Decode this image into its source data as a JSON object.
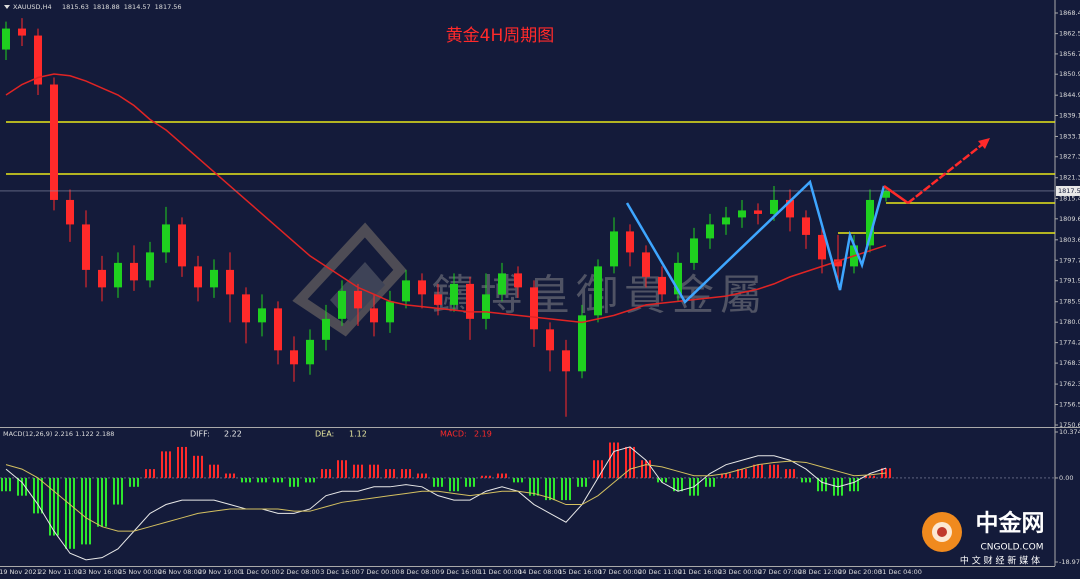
{
  "chart_data": [
    {
      "type": "candlestick",
      "title": "黄金4H周期图",
      "header": "XAUUSD,H4",
      "open": [
        1858,
        1864,
        1862,
        1848,
        1815,
        1808,
        1795,
        1790,
        1797,
        1792,
        1800,
        1808,
        1796,
        1790,
        1795,
        1788,
        1780,
        1784,
        1772,
        1768,
        1775,
        1781,
        1789,
        1784,
        1780,
        1786,
        1792,
        1788,
        1785,
        1791,
        1781,
        1788,
        1794,
        1790,
        1778,
        1772,
        1766,
        1782,
        1796,
        1806,
        1800,
        1793,
        1788,
        1797,
        1804,
        1808,
        1810,
        1812,
        1811,
        1815,
        1810,
        1805,
        1798,
        1796,
        1802,
        1815.63
      ],
      "high": [
        1866,
        1867,
        1864,
        1850,
        1818,
        1812,
        1799,
        1800,
        1802,
        1803,
        1813,
        1810,
        1799,
        1798,
        1800,
        1790,
        1788,
        1786,
        1776,
        1778,
        1785,
        1792,
        1791,
        1788,
        1789,
        1795,
        1794,
        1791,
        1794,
        1793,
        1794,
        1797,
        1796,
        1792,
        1780,
        1775,
        1785,
        1798,
        1810,
        1808,
        1802,
        1796,
        1800,
        1807,
        1811,
        1813,
        1815,
        1814,
        1819,
        1818,
        1812,
        1807,
        1805,
        1805,
        1818,
        1818.88
      ],
      "low": [
        1855,
        1859,
        1845,
        1812,
        1803,
        1790,
        1786,
        1787,
        1789,
        1790,
        1797,
        1793,
        1786,
        1787,
        1780,
        1774,
        1776,
        1768,
        1763,
        1765,
        1772,
        1779,
        1779,
        1776,
        1777,
        1784,
        1784,
        1782,
        1783,
        1775,
        1778,
        1786,
        1787,
        1773,
        1766,
        1753,
        1764,
        1780,
        1794,
        1796,
        1790,
        1786,
        1786,
        1795,
        1801,
        1805,
        1807,
        1808,
        1809,
        1806,
        1801,
        1794,
        1790,
        1794,
        1800,
        1814.57
      ],
      "close": [
        1864,
        1862,
        1848,
        1815,
        1808,
        1795,
        1790,
        1797,
        1792,
        1800,
        1808,
        1796,
        1790,
        1795,
        1788,
        1780,
        1784,
        1772,
        1768,
        1775,
        1781,
        1789,
        1784,
        1780,
        1786,
        1792,
        1788,
        1785,
        1791,
        1781,
        1788,
        1794,
        1790,
        1778,
        1772,
        1766,
        1782,
        1796,
        1806,
        1800,
        1793,
        1788,
        1797,
        1804,
        1808,
        1810,
        1812,
        1811,
        1815,
        1810,
        1805,
        1798,
        1796,
        1802,
        1815,
        1817.56
      ],
      "ma": [
        1845,
        1848,
        1850,
        1851,
        1850.5,
        1849,
        1847,
        1845,
        1842,
        1838,
        1835,
        1831,
        1827,
        1823,
        1819,
        1815,
        1811,
        1807,
        1803,
        1799,
        1796,
        1793,
        1790,
        1788,
        1786,
        1785,
        1784.5,
        1784,
        1783.5,
        1783,
        1783,
        1782.5,
        1782,
        1781.5,
        1781,
        1780.5,
        1780,
        1781,
        1782,
        1783.5,
        1785,
        1785.5,
        1786,
        1786.5,
        1787,
        1787.5,
        1788.5,
        1789.5,
        1791,
        1793,
        1794.5,
        1796,
        1797.5,
        1799,
        1800.5,
        1802
      ],
      "up_color": "#1fd01f",
      "down_color": "#ff2a2a",
      "ma_color": "#e02424",
      "levels": [
        1837.28,
        1822.42,
        1814.12,
        1805.55
      ],
      "level_starts": [
        0,
        0,
        55,
        52
      ],
      "level_color": "#e8e81a",
      "ylim": [
        1750.65,
        1868.45
      ],
      "yticks": [
        1868.45,
        1862.55,
        1856.75,
        1850.95,
        1844.95,
        1839.15,
        1833.15,
        1827.35,
        1821.35,
        1815.45,
        {
          "value": 1809.6,
          "label": "1809.60"
        },
        {
          "value": 1803.6,
          "label": "1803.60"
        },
        1797.75,
        {
          "value": 1791.9,
          "label": "1791.90"
        },
        {
          "value": 1785.9,
          "label": "1785.90"
        },
        1780.05,
        1774.2,
        1768.35,
        1762.35,
        {
          "value": 1756.5,
          "label": "1756.50"
        },
        1750.65
      ],
      "x_labels": [
        "19 Nov 2021",
        "22 Nov 11:00",
        "23 Nov 16:00",
        "25 Nov 00:00",
        "26 Nov 08:00",
        "29 Nov 19:00",
        "1 Dec 00:00",
        "2 Dec 08:00",
        "3 Dec 16:00",
        "7 Dec 00:00",
        "8 Dec 08:00",
        "9 Dec 16:00",
        "11 Dec 00:00",
        "14 Dec 08:00",
        "15 Dec 16:00",
        "17 Dec 00:00",
        "20 Dec 11:00",
        "21 Dec 16:00",
        "23 Dec 00:00",
        "27 Dec 07:00",
        "28 Dec 12:00",
        "29 Dec 20:00",
        "31 Dec 04:00"
      ]
    },
    {
      "type": "macd",
      "header": "MACD(12,26,9) 2.216 1.122 2.188",
      "series": [
        {
          "name": "MACD:",
          "color": "#ff2a2a",
          "down_color": "#2ee82e",
          "readout": 2.19,
          "values": [
            -3,
            -4,
            -8,
            -13,
            -16,
            -15,
            -11,
            -6,
            -2,
            2,
            6,
            7,
            5,
            3,
            1,
            -1,
            -1,
            -1,
            -2,
            -1,
            2,
            4,
            3,
            3,
            2,
            2,
            1,
            -2,
            -3,
            -2,
            0.5,
            1,
            -1,
            -4,
            -5,
            -5,
            -2,
            4,
            8,
            7,
            4,
            -1,
            -3,
            -4,
            -2,
            1,
            2,
            3,
            3,
            2,
            -1,
            -3,
            -4,
            -3,
            0.5,
            2.188
          ]
        },
        {
          "name": "DIFF:",
          "color": "#e8e8e8",
          "readout": 2.22,
          "values": [
            2,
            -1,
            -6,
            -12,
            -17,
            -18.5,
            -18,
            -16,
            -12,
            -8,
            -6,
            -5,
            -5,
            -5,
            -6,
            -7,
            -7,
            -8,
            -8,
            -7,
            -4,
            -3,
            -3,
            -2,
            -2,
            -1.5,
            -2,
            -4,
            -5,
            -5,
            -3,
            -2,
            -3,
            -6,
            -8,
            -10,
            -6,
            0,
            6,
            7,
            4,
            -1,
            -3,
            -2,
            1,
            3,
            4,
            5,
            5,
            4,
            2,
            -1,
            -2,
            -1,
            1,
            2.216
          ]
        },
        {
          "name": "DEA:",
          "color": "#d4c060",
          "readout": 1.12,
          "values": [
            3,
            2,
            0,
            -3,
            -6,
            -9,
            -11,
            -12,
            -12,
            -11,
            -10,
            -9,
            -8,
            -7.5,
            -7,
            -7,
            -7,
            -7,
            -7.5,
            -7.5,
            -6.5,
            -5.5,
            -5,
            -4.5,
            -4,
            -3.5,
            -3,
            -3,
            -3.5,
            -4,
            -3.5,
            -3,
            -3,
            -3.5,
            -4.5,
            -6,
            -6,
            -4,
            -1,
            2,
            3,
            2.5,
            1.5,
            0.5,
            0.5,
            1,
            2,
            3,
            3.5,
            3.8,
            3.5,
            2.5,
            1.5,
            0.5,
            0.7,
            1.122
          ]
        }
      ],
      "ylim": [
        -18.975,
        10.374
      ],
      "yticks": [
        10.374,
        {
          "value": 0,
          "label": "0.00"
        },
        -18.975
      ]
    }
  ],
  "watermark": "鑄博皇御貴金屬",
  "logo": {
    "name": "中金网",
    "url": "CNGOLD.COM",
    "tagline": "中 文 财 经 新 媒 体"
  }
}
